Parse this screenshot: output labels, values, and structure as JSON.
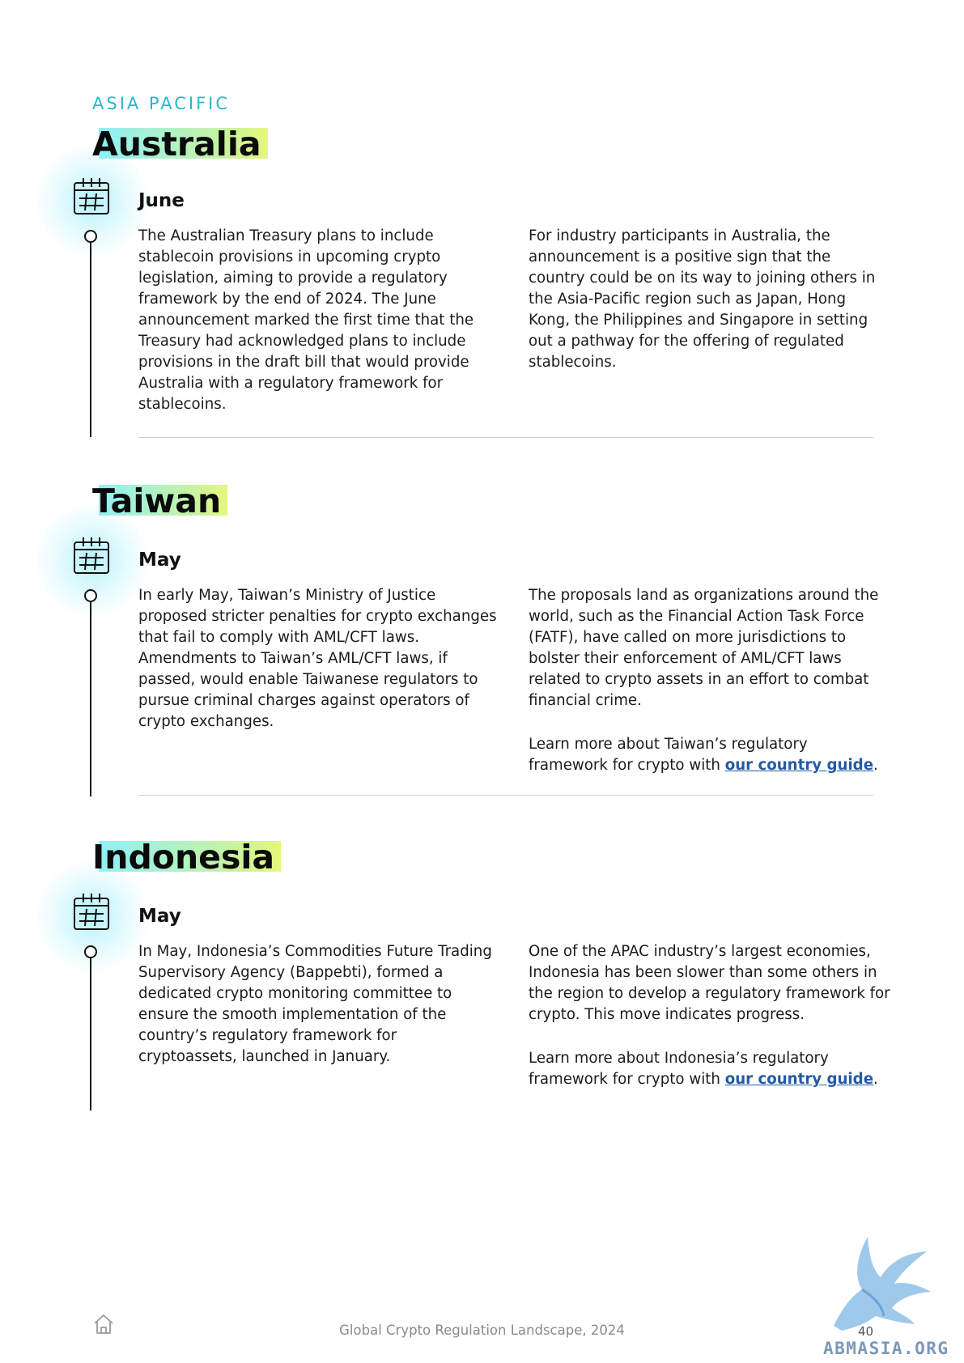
{
  "region": "ASIA PACIFIC",
  "sections": [
    {
      "country": "Australia",
      "month": "June",
      "left": [
        "The Australian Treasury plans to include stablecoin provisions in upcoming crypto legislation, aiming to provide a regulatory framework by the end of 2024. The June announcement marked the first time that the Treasury had acknowledged plans to include provisions in the draft bill that would provide Australia with a regulatory framework for stablecoins."
      ],
      "right": [
        "For industry participants in Australia, the announcement is a positive sign that the country could be on its way to joining others in the Asia-Pacific region such as Japan, Hong Kong, the Philippines and Singapore in setting out a pathway for the offering of regulated stablecoins."
      ]
    },
    {
      "country": "Taiwan",
      "month": "May",
      "left": [
        "In early May, Taiwan’s Ministry of Justice proposed stricter penalties for crypto exchanges that fail to comply with AML/CFT laws. Amendments to Taiwan’s AML/CFT laws, if passed, would enable Taiwanese regulators to pursue criminal charges against operators of crypto exchanges."
      ],
      "right": [
        "The proposals land as organizations around the world, such as the Financial Action Task Force (FATF), have called on more jurisdictions to bolster their enforcement of AML/CFT laws related to crypto assets in an effort to combat financial crime."
      ],
      "learn_more_prefix": "Learn more about Taiwan’s regulatory framework for crypto with ",
      "link_text": "our country guide",
      "learn_more_suffix": "."
    },
    {
      "country": "Indonesia",
      "month": "May",
      "left": [
        "In May, Indonesia’s Commodities Future Trading Supervisory Agency (Bappebti), formed a dedicated crypto monitoring committee to ensure the smooth implementation of the country’s regulatory framework for cryptoassets, launched in January."
      ],
      "right": [
        "One of the APAC industry’s largest economies, Indonesia has been slower than some others in the region to develop a regulatory framework for crypto. This move indicates progress."
      ],
      "learn_more_prefix": "Learn more about Indonesia’s regulatory framework for crypto with ",
      "link_text": "our country guide",
      "learn_more_suffix": "."
    }
  ],
  "footer": {
    "title": "Global Crypto Regulation Landscape, 2024",
    "page": "40"
  },
  "watermark": "ABMASIA.ORG",
  "colors": {
    "accent_cyan": "#27b8cc",
    "link": "#235aa6",
    "highlight_start": "#8ff0f7",
    "highlight_end": "#e6f77a"
  }
}
